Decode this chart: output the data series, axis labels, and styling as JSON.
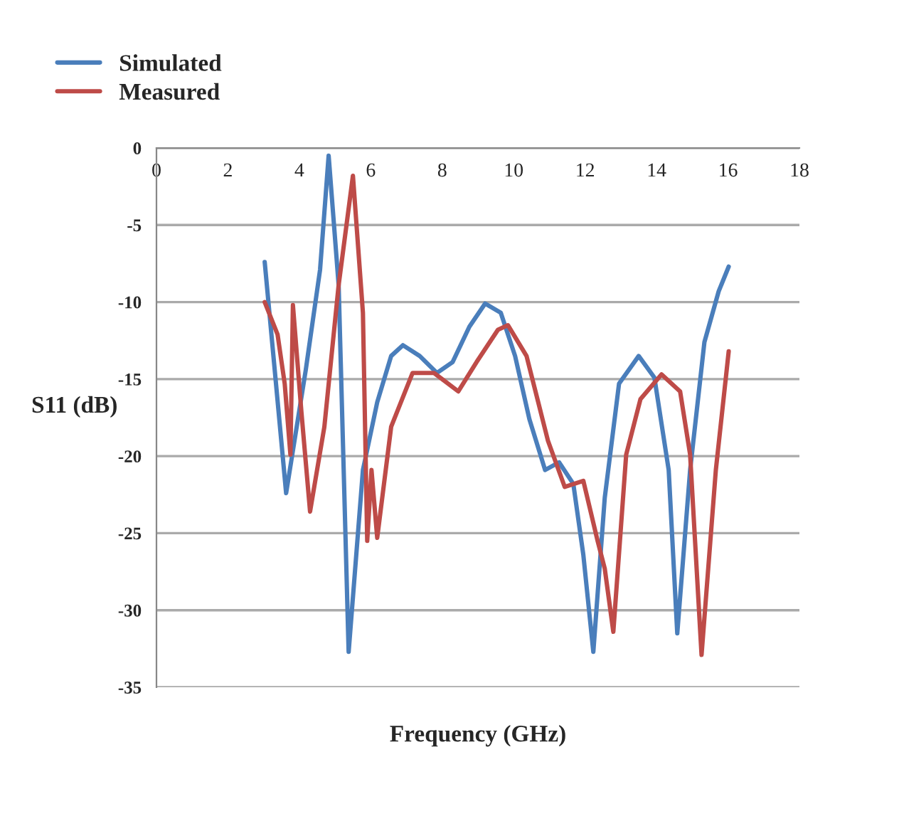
{
  "chart_data": {
    "type": "line",
    "xlabel": "Frequency (GHz)",
    "ylabel": "S11 (dB)",
    "xlim": [
      0,
      18
    ],
    "xticks": [
      0,
      2,
      4,
      6,
      8,
      10,
      12,
      14,
      16,
      18
    ],
    "ylim": [
      -35,
      0
    ],
    "yticks": [
      -35,
      -30,
      -25,
      -20,
      -15,
      -10,
      -5,
      0
    ],
    "grid": "y",
    "legend": "top left",
    "marker": "none",
    "line_style": "solid",
    "series": [
      {
        "name": "Simulated",
        "color": "#4a7ebb",
        "x": [
          3.03,
          3.63,
          4.18,
          4.58,
          4.82,
          5.1,
          5.38,
          5.78,
          6.18,
          6.57,
          6.9,
          7.37,
          7.85,
          8.29,
          8.76,
          9.2,
          9.64,
          10.04,
          10.44,
          10.88,
          11.27,
          11.67,
          11.95,
          12.23,
          12.55,
          12.95,
          13.5,
          13.94,
          14.34,
          14.58,
          14.94,
          15.34,
          15.74,
          16.02
        ],
        "values": [
          -7.4,
          -22.4,
          -14.4,
          -7.9,
          -0.5,
          -8.9,
          -32.7,
          -20.9,
          -16.5,
          -13.5,
          -12.8,
          -13.5,
          -14.6,
          -13.9,
          -11.6,
          -10.1,
          -10.7,
          -13.5,
          -17.6,
          -20.9,
          -20.4,
          -21.8,
          -26.4,
          -32.7,
          -22.7,
          -15.3,
          -13.5,
          -14.9,
          -20.9,
          -31.5,
          -20.9,
          -12.6,
          -9.3,
          -7.7
        ]
      },
      {
        "name": "Measured",
        "color": "#be4b48",
        "x": [
          3.03,
          3.39,
          3.59,
          3.75,
          3.82,
          4.06,
          4.3,
          4.7,
          5.1,
          5.5,
          5.78,
          5.9,
          6.02,
          6.18,
          6.57,
          7.17,
          7.77,
          8.45,
          8.96,
          9.56,
          9.84,
          10.36,
          10.96,
          11.43,
          11.95,
          12.35,
          12.55,
          12.79,
          13.15,
          13.55,
          14.14,
          14.66,
          14.94,
          15.26,
          15.66,
          16.02
        ],
        "values": [
          -10.0,
          -12.1,
          -15.3,
          -19.9,
          -10.2,
          -17.2,
          -23.6,
          -18.1,
          -8.9,
          -1.8,
          -10.7,
          -25.5,
          -20.9,
          -25.3,
          -18.1,
          -14.6,
          -14.6,
          -15.8,
          -13.9,
          -11.8,
          -11.5,
          -13.5,
          -19.0,
          -22.0,
          -21.6,
          -25.5,
          -27.3,
          -31.4,
          -19.9,
          -16.3,
          -14.7,
          -15.8,
          -19.9,
          -32.9,
          -20.9,
          -13.2
        ]
      }
    ]
  }
}
